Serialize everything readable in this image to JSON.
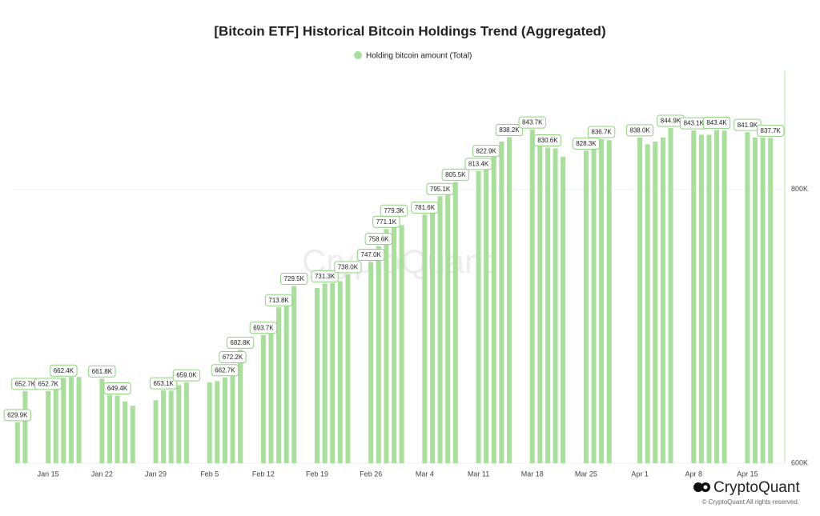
{
  "chart_data": {
    "type": "bar",
    "title": "[Bitcoin ETF] Historical Bitcoin Holdings Trend (Aggregated)",
    "watermark": "CryptoQuant",
    "brand": "CryptoQuant",
    "copyright": "© CryptoQuant All rights reserved.",
    "categories": [
      null,
      null,
      null,
      null,
      "Jan 15",
      null,
      null,
      null,
      null,
      null,
      null,
      "Jan 22",
      null,
      null,
      null,
      null,
      null,
      null,
      "Jan 29",
      null,
      null,
      null,
      null,
      null,
      null,
      "Feb 5",
      null,
      null,
      null,
      null,
      null,
      null,
      "Feb 12",
      null,
      null,
      null,
      null,
      null,
      null,
      "Feb 19",
      null,
      null,
      null,
      null,
      null,
      null,
      "Feb 26",
      null,
      null,
      null,
      null,
      null,
      null,
      "Mar 4",
      null,
      null,
      null,
      null,
      null,
      null,
      "Mar 11",
      null,
      null,
      null,
      null,
      null,
      null,
      "Mar 18",
      null,
      null,
      null,
      null,
      null,
      null,
      "Mar 25",
      null,
      null,
      null,
      null,
      null,
      null,
      "Apr 1",
      null,
      null,
      null,
      null,
      null,
      null,
      "Apr 8",
      null,
      null,
      null,
      null,
      null,
      null,
      "Apr 15",
      null,
      null,
      null
    ],
    "series": [
      {
        "name": "Holding bitcoin amount (Total)",
        "color": "#a9de9c",
        "values": [
          629900,
          652700,
          null,
          null,
          652700,
          655000,
          662400,
          663000,
          663000,
          null,
          null,
          661800,
          650000,
          649400,
          645000,
          642000,
          null,
          null,
          646000,
          653100,
          653000,
          657000,
          659000,
          null,
          null,
          659000,
          660000,
          662700,
          672200,
          682800,
          null,
          null,
          693700,
          700000,
          713800,
          720000,
          729500,
          null,
          null,
          728000,
          731300,
          731500,
          733000,
          738000,
          null,
          null,
          747000,
          758600,
          771100,
          779300,
          774000,
          null,
          null,
          781600,
          786000,
          795100,
          801000,
          805500,
          null,
          null,
          813400,
          822900,
          828000,
          835000,
          838200,
          null,
          null,
          843700,
          832000,
          830600,
          830000,
          824000,
          null,
          null,
          828300,
          830000,
          836700,
          836000,
          null,
          null,
          null,
          838000,
          833000,
          835000,
          838000,
          844900,
          null,
          null,
          843100,
          840000,
          840000,
          843400,
          843000,
          null,
          null,
          841900,
          838000,
          838000,
          837700
        ],
        "value_labels": [
          "629.9K",
          "652.7K",
          null,
          null,
          "652.7K",
          null,
          "662.4K",
          null,
          null,
          null,
          null,
          "661.8K",
          null,
          "649.4K",
          null,
          null,
          null,
          null,
          null,
          "653.1K",
          null,
          null,
          "659.0K",
          null,
          null,
          null,
          null,
          "662.7K",
          "672.2K",
          "682.8K",
          null,
          null,
          "693.7K",
          null,
          "713.8K",
          null,
          "729.5K",
          null,
          null,
          null,
          "731.3K",
          null,
          null,
          "738.0K",
          null,
          null,
          "747.0K",
          "758.6K",
          "771.1K",
          "779.3K",
          null,
          null,
          null,
          "781.6K",
          null,
          "795.1K",
          null,
          "805.5K",
          null,
          null,
          "813.4K",
          "822.9K",
          null,
          null,
          "838.2K",
          null,
          null,
          "843.7K",
          null,
          "830.6K",
          null,
          null,
          null,
          null,
          "828.3K",
          null,
          "836.7K",
          null,
          null,
          null,
          null,
          "838.0K",
          null,
          null,
          null,
          "844.9K",
          null,
          null,
          "843.1K",
          null,
          null,
          "843.4K",
          null,
          null,
          null,
          "841.9K",
          null,
          null,
          "837.7K"
        ]
      }
    ],
    "ylim": [
      600000,
      887000
    ],
    "yticks": [
      {
        "value": 600000,
        "label": "600K"
      },
      {
        "value": 800000,
        "label": "800K"
      }
    ],
    "grid": true
  }
}
